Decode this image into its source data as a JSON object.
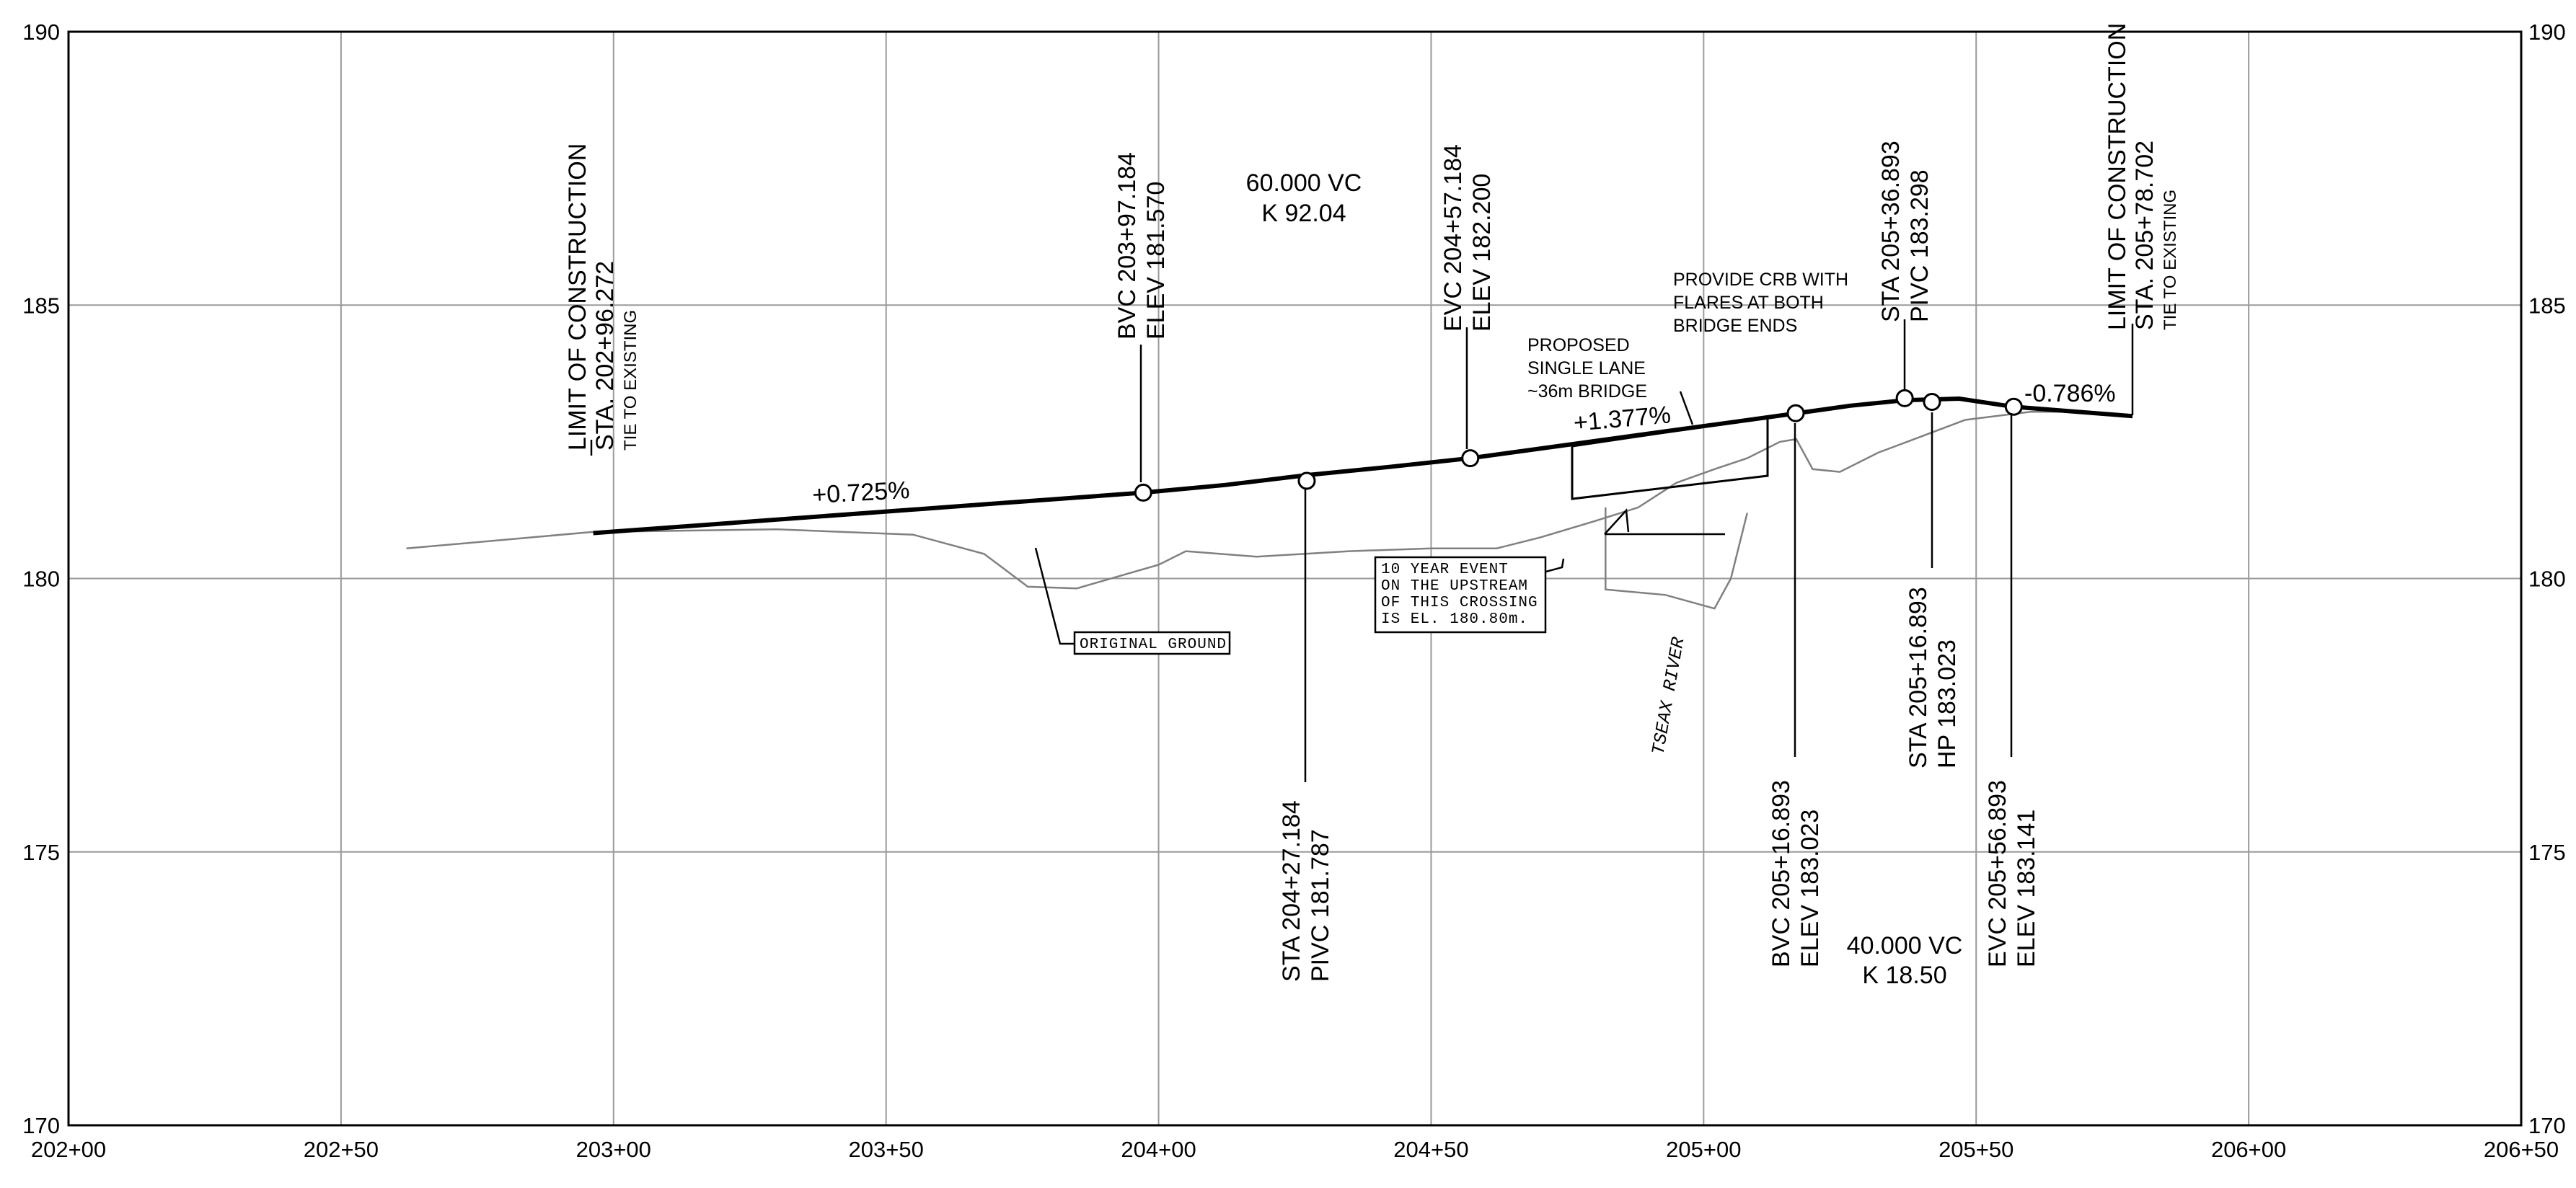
{
  "chart_data": {
    "type": "line",
    "x_ticks": [
      "202+00",
      "202+50",
      "203+00",
      "203+50",
      "204+00",
      "204+50",
      "205+00",
      "205+50",
      "206+00",
      "206+50"
    ],
    "y_ticks": [
      "170",
      "175",
      "180",
      "185",
      "190"
    ],
    "xlim": [
      20200,
      20650
    ],
    "ylim": [
      170,
      190
    ],
    "grid": true,
    "series": [
      {
        "kind": "proposed-profile",
        "points": [
          [
            20296.272,
            180.83
          ],
          [
            20397.184,
            181.57
          ],
          [
            20412.184,
            181.71
          ],
          [
            20427.184,
            181.89
          ],
          [
            20442.184,
            182.04
          ],
          [
            20457.184,
            182.2
          ],
          [
            20517.0,
            183.02
          ],
          [
            20526.893,
            183.16
          ],
          [
            20536.893,
            183.26
          ],
          [
            20546.893,
            183.29
          ],
          [
            20556.893,
            183.14
          ],
          [
            20578.702,
            182.97
          ]
        ]
      },
      {
        "kind": "original-ground",
        "points": [
          [
            20262,
            180.55
          ],
          [
            20296,
            180.85
          ],
          [
            20330,
            180.9
          ],
          [
            20355,
            180.8
          ],
          [
            20368,
            180.45
          ],
          [
            20376,
            179.85
          ],
          [
            20385,
            179.82
          ],
          [
            20393,
            180.05
          ],
          [
            20400,
            180.25
          ],
          [
            20405,
            180.5
          ],
          [
            20418,
            180.4
          ],
          [
            20435,
            180.5
          ],
          [
            20450,
            180.55
          ],
          [
            20462,
            180.55
          ],
          [
            20470,
            180.75
          ],
          [
            20480,
            181.05
          ],
          [
            20488,
            181.3
          ],
          [
            20495,
            181.75
          ],
          [
            20502,
            182.0
          ],
          [
            20508,
            182.2
          ],
          [
            20514,
            182.5
          ],
          [
            20517,
            182.55
          ],
          [
            20520,
            182.0
          ],
          [
            20525,
            181.95
          ],
          [
            20532,
            182.3
          ],
          [
            20540,
            182.6
          ],
          [
            20548,
            182.9
          ],
          [
            20560,
            183.05
          ],
          [
            20572,
            183.05
          ]
        ]
      },
      {
        "kind": "river-channel",
        "points": [
          [
            20482,
            181.3
          ],
          [
            20482,
            179.8
          ],
          [
            20493,
            179.7
          ],
          [
            20502,
            179.45
          ],
          [
            20505,
            180.0
          ],
          [
            20508,
            181.2
          ]
        ]
      }
    ],
    "vertices": [
      {
        "station": 20397.184,
        "elev": 181.57
      },
      {
        "station": 20427.184,
        "elev": 181.787
      },
      {
        "station": 20457.184,
        "elev": 182.2
      },
      {
        "station": 20516.893,
        "elev": 183.023
      },
      {
        "station": 20536.893,
        "elev": 183.298
      },
      {
        "station": 20541.893,
        "elev": 183.23
      },
      {
        "station": 20556.893,
        "elev": 183.141
      }
    ],
    "grades": [
      "+0.725%",
      "+1.377%",
      "-0.786%"
    ]
  },
  "annotations": {
    "loc_start": [
      "LIMIT OF CONSTRUCTION",
      "STA. 202+96.272",
      "TIE TO EXISTING"
    ],
    "bvc1": [
      "BVC 203+97.184",
      "ELEV 181.570"
    ],
    "vc1": [
      "60.000 VC",
      "K 92.04"
    ],
    "evc1": [
      "EVC 204+57.184",
      "ELEV 182.200"
    ],
    "pivc1": [
      "STA 204+27.184",
      "PIVC 181.787"
    ],
    "bridge": [
      "PROPOSED",
      "SINGLE LANE",
      "~36m BRIDGE"
    ],
    "crb": [
      "PROVIDE CRB WITH",
      "FLARES AT BOTH",
      "BRIDGE ENDS"
    ],
    "pivc2": [
      "STA 205+36.893",
      "PIVC 183.298"
    ],
    "loc_end": [
      "LIMIT OF CONSTRUCTION",
      "STA. 205+78.702",
      "TIE TO EXISTING"
    ],
    "event": [
      "10 YEAR EVENT",
      "ON THE UPSTREAM",
      "OF THIS CROSSING",
      "IS EL. 180.80m."
    ],
    "original_ground": "ORIGINAL GROUND",
    "river": "TSEAX RIVER",
    "bvc2": [
      "BVC 205+16.893",
      "ELEV 183.023"
    ],
    "hp": [
      "STA 205+16.893",
      "HP 183.023"
    ],
    "evc2": [
      "EVC 205+56.893",
      "ELEV 183.141"
    ],
    "vc2": [
      "40.000 VC",
      "K 18.50"
    ]
  }
}
